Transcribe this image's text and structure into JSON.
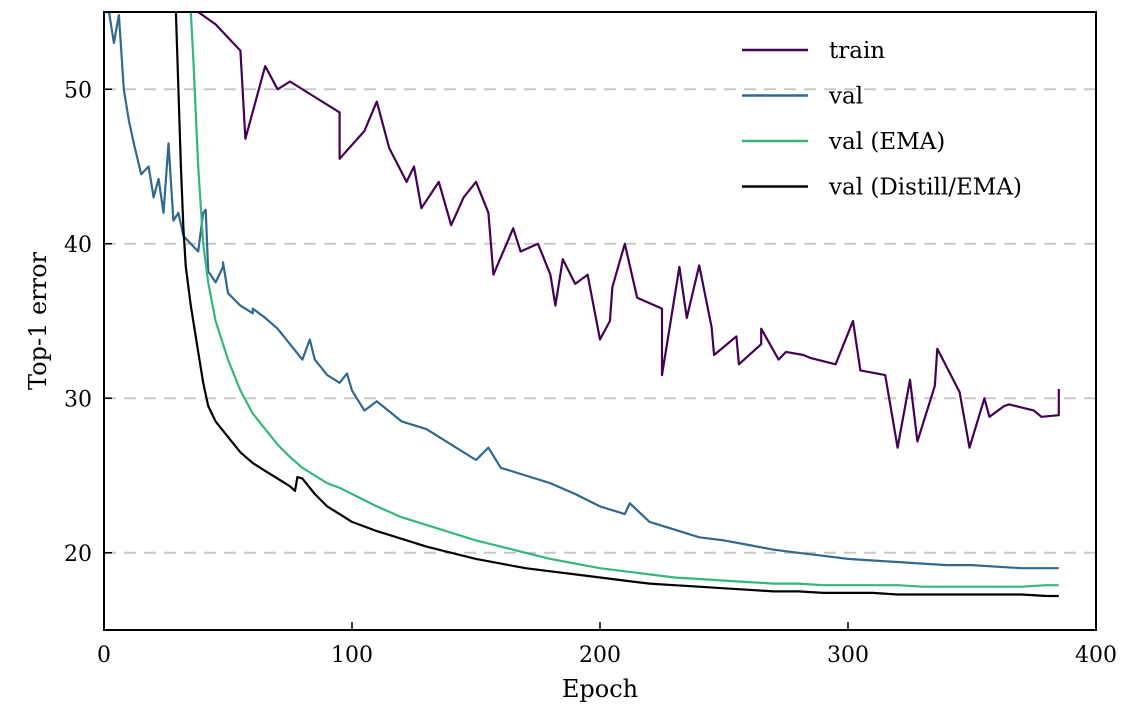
{
  "chart_data": {
    "type": "line",
    "xlabel": "Epoch",
    "ylabel": "Top-1 error",
    "xlim": [
      0,
      400
    ],
    "ylim": [
      15,
      55
    ],
    "xticks": [
      0,
      100,
      200,
      300,
      400
    ],
    "yticks": [
      20,
      30,
      40,
      50
    ],
    "grid": "horizontal dashed",
    "legend_position": "top-right",
    "series": [
      {
        "name": "train",
        "color": "#440154",
        "x": [
          38,
          45,
          55,
          65,
          75,
          85,
          95,
          105,
          115,
          125,
          135,
          145,
          155,
          165,
          175,
          185,
          195,
          205,
          215,
          225,
          235,
          245,
          255,
          265,
          275,
          285,
          295,
          305,
          315,
          325,
          335,
          345,
          355,
          365,
          375,
          385
        ],
        "y": [
          55,
          54.2,
          52.5,
          51.5,
          50.5,
          49.5,
          48.5,
          47.3,
          46.2,
          45.0,
          44.0,
          43.0,
          42.0,
          41.0,
          40.0,
          39.0,
          38.0,
          37.2,
          36.5,
          35.8,
          35.2,
          34.6,
          34.0,
          33.5,
          33.0,
          32.6,
          32.2,
          31.8,
          31.5,
          31.2,
          30.8,
          30.4,
          30.0,
          29.6,
          29.2,
          28.9
        ],
        "spikes": [
          [
            57,
            46.8
          ],
          [
            70,
            50.0
          ],
          [
            95,
            45.5
          ],
          [
            110,
            49.2
          ],
          [
            122,
            44.0
          ],
          [
            128,
            42.3
          ],
          [
            140,
            41.2
          ],
          [
            150,
            44.0
          ],
          [
            157,
            38.0
          ],
          [
            168,
            39.5
          ],
          [
            180,
            38.0
          ],
          [
            182,
            36.0
          ],
          [
            190,
            37.4
          ],
          [
            200,
            33.8
          ],
          [
            204,
            35.0
          ],
          [
            210,
            40.0
          ],
          [
            225,
            31.5
          ],
          [
            232,
            38.5
          ],
          [
            240,
            38.6
          ],
          [
            246,
            32.8
          ],
          [
            256,
            32.2
          ],
          [
            265,
            34.5
          ],
          [
            272,
            32.5
          ],
          [
            282,
            32.8
          ],
          [
            302,
            35.0
          ],
          [
            320,
            26.8
          ],
          [
            328,
            27.2
          ],
          [
            336,
            33.2
          ],
          [
            349,
            26.8
          ],
          [
            357,
            28.8
          ],
          [
            363,
            29.5
          ],
          [
            378,
            28.8
          ],
          [
            385,
            30.6
          ]
        ]
      },
      {
        "name": "val",
        "color": "#31688e",
        "x": [
          0,
          2,
          4,
          6,
          8,
          10,
          12,
          15,
          18,
          20,
          22,
          24,
          26,
          28,
          30,
          32,
          35,
          38,
          40,
          42,
          45,
          48,
          50,
          55,
          60,
          65,
          70,
          75,
          80,
          85,
          90,
          95,
          100,
          110,
          120,
          130,
          140,
          150,
          160,
          170,
          180,
          190,
          200,
          210,
          220,
          230,
          240,
          250,
          260,
          270,
          280,
          290,
          300,
          310,
          320,
          330,
          340,
          350,
          360,
          370,
          380,
          385
        ],
        "y": [
          55.0,
          55.0,
          53.0,
          54.8,
          50.0,
          48.0,
          46.5,
          44.5,
          45.0,
          43.0,
          44.2,
          42.0,
          46.5,
          41.5,
          42.0,
          40.5,
          40.0,
          39.5,
          42.0,
          38.2,
          37.5,
          38.5,
          36.8,
          36.0,
          35.5,
          35.2,
          34.5,
          33.5,
          32.5,
          32.5,
          31.5,
          31.0,
          30.5,
          29.8,
          28.5,
          28.0,
          27.0,
          26.0,
          25.5,
          25.0,
          24.5,
          23.8,
          23.0,
          22.5,
          22.0,
          21.5,
          21.0,
          20.8,
          20.5,
          20.2,
          20.0,
          19.8,
          19.6,
          19.5,
          19.4,
          19.3,
          19.2,
          19.2,
          19.1,
          19.0,
          19.0,
          19.0
        ],
        "spikes": [
          [
            41,
            42.2
          ],
          [
            43,
            38.0
          ],
          [
            48,
            38.8
          ],
          [
            60,
            35.8
          ],
          [
            83,
            33.8
          ],
          [
            98,
            31.6
          ],
          [
            105,
            29.2
          ],
          [
            155,
            26.8
          ],
          [
            190,
            23.8
          ],
          [
            212,
            23.2
          ]
        ]
      },
      {
        "name": "val (EMA)",
        "color": "#35b779",
        "x": [
          35,
          36,
          38,
          40,
          42,
          45,
          50,
          55,
          60,
          65,
          70,
          75,
          80,
          85,
          90,
          95,
          100,
          110,
          120,
          130,
          140,
          150,
          160,
          170,
          180,
          190,
          200,
          210,
          220,
          230,
          240,
          250,
          260,
          270,
          280,
          290,
          300,
          310,
          320,
          330,
          340,
          350,
          360,
          370,
          380,
          385
        ],
        "y": [
          55.0,
          52.0,
          45.0,
          40.0,
          37.5,
          35.0,
          32.5,
          30.5,
          29.0,
          28.0,
          27.0,
          26.2,
          25.5,
          25.0,
          24.5,
          24.2,
          23.8,
          23.0,
          22.3,
          21.8,
          21.3,
          20.8,
          20.4,
          20.0,
          19.6,
          19.3,
          19.0,
          18.8,
          18.6,
          18.4,
          18.3,
          18.2,
          18.1,
          18.0,
          18.0,
          17.9,
          17.9,
          17.9,
          17.9,
          17.8,
          17.8,
          17.8,
          17.8,
          17.8,
          17.9,
          17.9
        ],
        "spikes": []
      },
      {
        "name": "val (Distill/EMA)",
        "color": "#000000",
        "x": [
          29,
          30,
          31,
          32,
          33,
          35,
          38,
          40,
          42,
          45,
          50,
          55,
          60,
          65,
          70,
          75,
          77,
          78,
          80,
          85,
          90,
          95,
          100,
          110,
          120,
          130,
          140,
          150,
          160,
          170,
          180,
          190,
          200,
          210,
          220,
          230,
          240,
          250,
          260,
          270,
          280,
          290,
          300,
          310,
          320,
          330,
          340,
          350,
          360,
          370,
          380,
          385
        ],
        "y": [
          55.0,
          50.0,
          45.0,
          41.0,
          38.5,
          36.0,
          33.0,
          31.0,
          29.5,
          28.5,
          27.5,
          26.5,
          25.8,
          25.3,
          24.8,
          24.3,
          24.0,
          24.9,
          24.8,
          23.8,
          23.0,
          22.5,
          22.0,
          21.4,
          20.9,
          20.4,
          20.0,
          19.6,
          19.3,
          19.0,
          18.8,
          18.6,
          18.4,
          18.2,
          18.0,
          17.9,
          17.8,
          17.7,
          17.6,
          17.5,
          17.5,
          17.4,
          17.4,
          17.4,
          17.3,
          17.3,
          17.3,
          17.3,
          17.3,
          17.3,
          17.2,
          17.2
        ],
        "spikes": []
      }
    ]
  }
}
